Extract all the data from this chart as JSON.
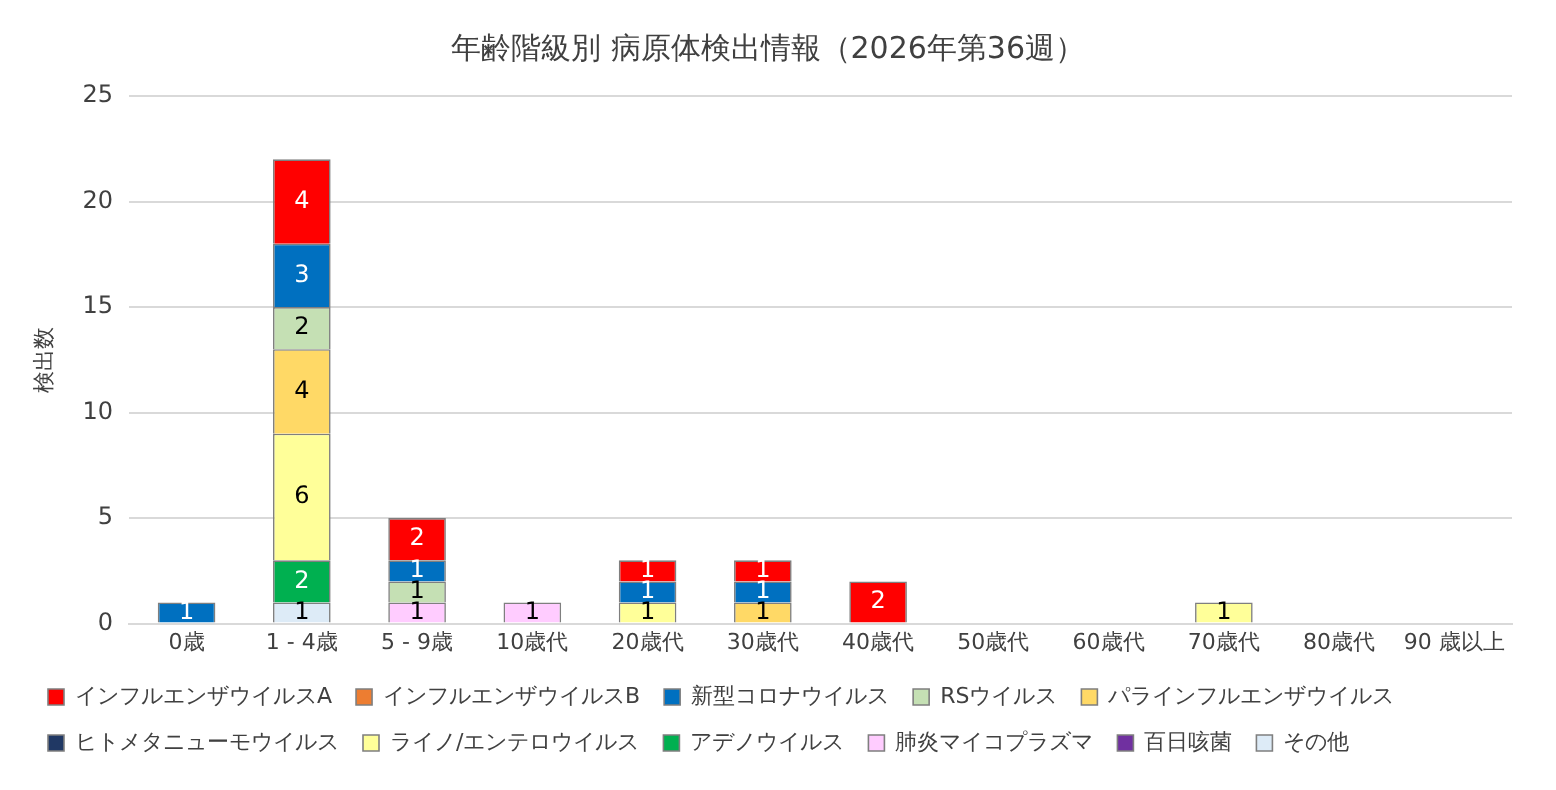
{
  "chart_data": {
    "type": "bar",
    "title": "年齢階級別 病原体検出情報（2026年第36週）",
    "ylabel": "検出数",
    "categories": [
      "0歳",
      "1 - 4歳",
      "5 - 9歳",
      "10歳代",
      "20歳代",
      "30歳代",
      "40歳代",
      "50歳代",
      "60歳代",
      "70歳代",
      "80歳代",
      "90 歳以上"
    ],
    "stacked": true,
    "ylim": [
      0,
      25
    ],
    "yticks": [
      0,
      5,
      10,
      15,
      20,
      25
    ],
    "grid": "y",
    "legend": "bottom",
    "data_labels": true,
    "series": [
      {
        "name": "その他",
        "color": "#ddebf7",
        "values": [
          null,
          1,
          null,
          null,
          null,
          null,
          null,
          null,
          null,
          null,
          null,
          null
        ]
      },
      {
        "name": "百日咳菌",
        "color": "#7030a0",
        "values": [
          null,
          null,
          null,
          null,
          null,
          null,
          null,
          null,
          null,
          null,
          null,
          null
        ]
      },
      {
        "name": "肺炎マイコプラズマ",
        "color": "#ffccff",
        "values": [
          null,
          null,
          1,
          1,
          null,
          null,
          null,
          null,
          null,
          null,
          null,
          null
        ]
      },
      {
        "name": "アデノウイルス",
        "color": "#00b050",
        "values": [
          null,
          2,
          null,
          null,
          null,
          null,
          null,
          null,
          null,
          null,
          null,
          null
        ]
      },
      {
        "name": "ライノ/エンテロウイルス",
        "color": "#ffff99",
        "values": [
          null,
          6,
          null,
          null,
          1,
          null,
          null,
          null,
          null,
          1,
          null,
          null
        ]
      },
      {
        "name": "ヒトメタニューモウイルス",
        "color": "#203864",
        "values": [
          null,
          null,
          null,
          null,
          null,
          null,
          null,
          null,
          null,
          null,
          null,
          null
        ]
      },
      {
        "name": "パラインフルエンザウイルス",
        "color": "#ffd966",
        "values": [
          null,
          4,
          null,
          null,
          null,
          1,
          null,
          null,
          null,
          null,
          null,
          null
        ]
      },
      {
        "name": "RSウイルス",
        "color": "#c5e0b4",
        "values": [
          null,
          2,
          1,
          null,
          null,
          null,
          null,
          null,
          null,
          null,
          null,
          null
        ]
      },
      {
        "name": "新型コロナウイルス",
        "color": "#0070c0",
        "values": [
          1,
          3,
          1,
          null,
          1,
          1,
          null,
          null,
          null,
          null,
          null,
          null
        ]
      },
      {
        "name": "インフルエンザウイルスB",
        "color": "#ed7d31",
        "values": [
          null,
          null,
          null,
          null,
          null,
          null,
          null,
          null,
          null,
          null,
          null,
          null
        ]
      },
      {
        "name": "インフルエンザウイルスA",
        "color": "#ff0000",
        "values": [
          null,
          4,
          2,
          null,
          1,
          1,
          2,
          null,
          null,
          null,
          null,
          null
        ]
      }
    ]
  }
}
